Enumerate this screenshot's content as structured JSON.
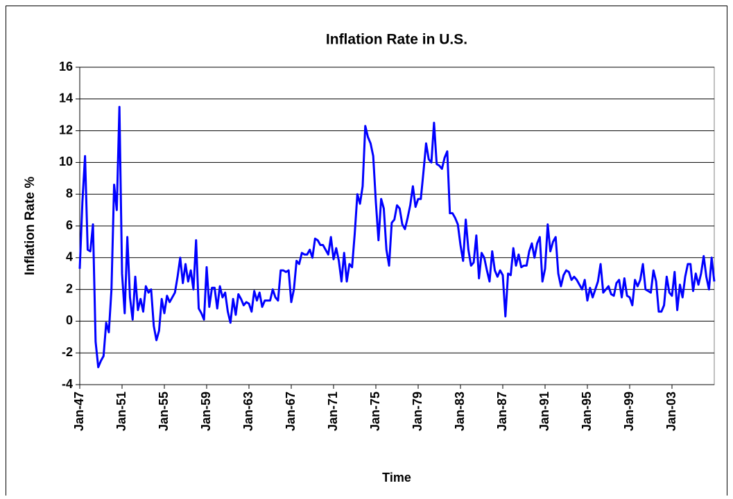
{
  "chart_data": {
    "type": "line",
    "title": "Inflation Rate in U.S.",
    "x_label": "Time",
    "y_label": "Inflation Rate %",
    "color": "#0000FF",
    "grid": true,
    "ylim": [
      -4,
      16
    ],
    "yticks": [
      -4,
      -2,
      0,
      2,
      4,
      6,
      8,
      10,
      12,
      14,
      16
    ],
    "categories": [
      "Jan-47",
      null,
      null,
      null,
      null,
      null,
      null,
      null,
      null,
      null,
      null,
      null,
      null,
      null,
      null,
      null,
      "Jan-51",
      null,
      null,
      null,
      null,
      null,
      null,
      null,
      null,
      null,
      null,
      null,
      null,
      null,
      null,
      null,
      "Jan-55",
      null,
      null,
      null,
      null,
      null,
      null,
      null,
      null,
      null,
      null,
      null,
      null,
      null,
      null,
      null,
      "Jan-59",
      null,
      null,
      null,
      null,
      null,
      null,
      null,
      null,
      null,
      null,
      null,
      null,
      null,
      null,
      null,
      "Jan-63",
      null,
      null,
      null,
      null,
      null,
      null,
      null,
      null,
      null,
      null,
      null,
      null,
      null,
      null,
      null,
      "Jan-67",
      null,
      null,
      null,
      null,
      null,
      null,
      null,
      null,
      null,
      null,
      null,
      null,
      null,
      null,
      null,
      "Jan-71",
      null,
      null,
      null,
      null,
      null,
      null,
      null,
      null,
      null,
      null,
      null,
      null,
      null,
      null,
      null,
      "Jan-75",
      null,
      null,
      null,
      null,
      null,
      null,
      null,
      null,
      null,
      null,
      null,
      null,
      null,
      null,
      null,
      "Jan-79",
      null,
      null,
      null,
      null,
      null,
      null,
      null,
      null,
      null,
      null,
      null,
      null,
      null,
      null,
      null,
      "Jan-83",
      null,
      null,
      null,
      null,
      null,
      null,
      null,
      null,
      null,
      null,
      null,
      null,
      null,
      null,
      null,
      "Jan-87",
      null,
      null,
      null,
      null,
      null,
      null,
      null,
      null,
      null,
      null,
      null,
      null,
      null,
      null,
      null,
      "Jan-91",
      null,
      null,
      null,
      null,
      null,
      null,
      null,
      null,
      null,
      null,
      null,
      null,
      null,
      null,
      null,
      "Jan-95",
      null,
      null,
      null,
      null,
      null,
      null,
      null,
      null,
      null,
      null,
      null,
      null,
      null,
      null,
      null,
      "Jan-99",
      null,
      null,
      null,
      null,
      null,
      null,
      null,
      null,
      null,
      null,
      null,
      null,
      null,
      null,
      null,
      "Jan-03",
      null,
      null,
      null,
      null,
      null,
      null,
      null,
      null,
      null,
      null,
      null,
      null,
      null,
      null,
      null,
      null
    ],
    "values": [
      3.3,
      7.5,
      10.4,
      4.5,
      4.4,
      6.1,
      -1.3,
      -2.9,
      -2.5,
      -2.2,
      -0.1,
      -0.7,
      2.0,
      8.6,
      7.0,
      13.5,
      3.0,
      0.5,
      5.3,
      1.5,
      0.1,
      2.8,
      0.7,
      1.4,
      0.6,
      2.2,
      1.8,
      2.0,
      -0.3,
      -1.2,
      -0.6,
      1.4,
      0.5,
      1.6,
      1.2,
      1.5,
      1.8,
      2.8,
      4.0,
      2.4,
      3.6,
      2.5,
      3.2,
      2.0,
      5.1,
      0.8,
      0.5,
      0.1,
      3.4,
      0.9,
      2.1,
      2.1,
      0.8,
      2.2,
      1.5,
      1.8,
      0.6,
      -0.1,
      1.4,
      0.4,
      1.7,
      1.4,
      1.0,
      1.2,
      1.1,
      0.6,
      1.9,
      1.3,
      1.8,
      0.9,
      1.3,
      1.3,
      1.3,
      2.0,
      1.5,
      1.3,
      3.2,
      3.2,
      3.1,
      3.2,
      1.2,
      2.0,
      3.8,
      3.6,
      4.3,
      4.2,
      4.2,
      4.5,
      4.0,
      5.2,
      5.1,
      4.8,
      4.8,
      4.5,
      4.2,
      5.3,
      3.9,
      4.6,
      3.8,
      2.5,
      4.3,
      2.5,
      3.6,
      3.4,
      5.5,
      8.0,
      7.4,
      8.5,
      12.3,
      11.6,
      11.2,
      10.4,
      7.5,
      5.1,
      7.7,
      7.1,
      4.5,
      3.5,
      6.2,
      6.4,
      7.3,
      7.1,
      6.1,
      5.8,
      6.5,
      7.3,
      8.5,
      7.2,
      7.7,
      7.7,
      9.4,
      11.2,
      10.2,
      10.0,
      12.5,
      9.9,
      9.8,
      9.6,
      10.3,
      10.7,
      6.8,
      6.8,
      6.5,
      6.1,
      4.8,
      3.8,
      6.4,
      4.5,
      3.5,
      3.7,
      5.4,
      2.7,
      4.3,
      4.0,
      3.2,
      2.5,
      4.4,
      3.2,
      2.8,
      3.2,
      2.9,
      0.3,
      3.0,
      2.9,
      4.6,
      3.5,
      4.2,
      3.4,
      3.5,
      3.5,
      4.4,
      4.9,
      4.0,
      4.9,
      5.3,
      2.5,
      3.3,
      6.1,
      4.4,
      5.0,
      5.3,
      3.0,
      2.2,
      2.9,
      3.2,
      3.1,
      2.6,
      2.8,
      2.6,
      2.3,
      2.0,
      2.6,
      1.3,
      2.1,
      1.5,
      2.0,
      2.5,
      3.6,
      1.8,
      2.0,
      2.2,
      1.7,
      1.6,
      2.4,
      2.6,
      1.5,
      2.7,
      1.6,
      1.5,
      1.0,
      2.6,
      2.2,
      2.6,
      3.6,
      2.0,
      1.9,
      1.8,
      3.2,
      2.5,
      0.6,
      0.6,
      1.0,
      2.8,
      1.8,
      1.6,
      3.1,
      0.7,
      2.3,
      1.5,
      2.8,
      3.6,
      3.6,
      1.9,
      3.0,
      2.3,
      3.0,
      4.1,
      2.8,
      2.0,
      4.0,
      2.5
    ]
  }
}
